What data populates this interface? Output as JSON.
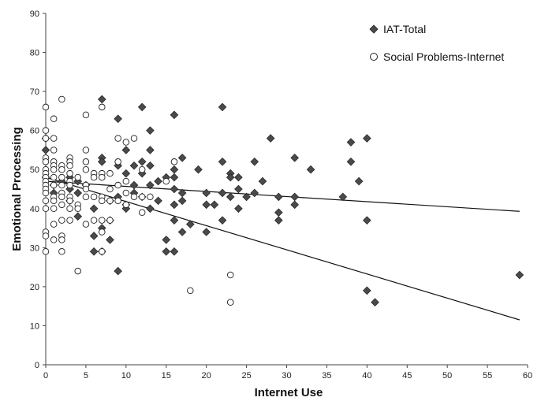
{
  "chart_data": {
    "type": "scatter",
    "title": "",
    "xlabel": "Internet Use",
    "ylabel": "Emotional Processing",
    "xlim": [
      0,
      60
    ],
    "ylim": [
      0,
      90
    ],
    "xticks": [
      "0",
      "5",
      "10",
      "15",
      "20",
      "25",
      "30",
      "35",
      "40",
      "45",
      "50",
      "55",
      "60"
    ],
    "yticks": [
      "0",
      "10",
      "20",
      "30",
      "40",
      "50",
      "60",
      "70",
      "80",
      "90"
    ],
    "grid": false,
    "legend_position": "top-right",
    "series": [
      {
        "name": "IAT-Total",
        "marker": "diamond",
        "color": "#4a4a4a",
        "points": [
          [
            0,
            58
          ],
          [
            0,
            55
          ],
          [
            0,
            48
          ],
          [
            1,
            44
          ],
          [
            1,
            46
          ],
          [
            2,
            47
          ],
          [
            3,
            48
          ],
          [
            3,
            45
          ],
          [
            3,
            42
          ],
          [
            4,
            47
          ],
          [
            4,
            44
          ],
          [
            4,
            38
          ],
          [
            5,
            46
          ],
          [
            6,
            33
          ],
          [
            6,
            29
          ],
          [
            6,
            40
          ],
          [
            7,
            68
          ],
          [
            7,
            53
          ],
          [
            7,
            52
          ],
          [
            7,
            35
          ],
          [
            7,
            29
          ],
          [
            8,
            37
          ],
          [
            8,
            32
          ],
          [
            8,
            42
          ],
          [
            9,
            63
          ],
          [
            9,
            24
          ],
          [
            9,
            43
          ],
          [
            9,
            51
          ],
          [
            10,
            55
          ],
          [
            10,
            49
          ],
          [
            10,
            41
          ],
          [
            10,
            40
          ],
          [
            11,
            51
          ],
          [
            11,
            46
          ],
          [
            11,
            44
          ],
          [
            12,
            66
          ],
          [
            12,
            52
          ],
          [
            12,
            49
          ],
          [
            12,
            43
          ],
          [
            13,
            60
          ],
          [
            13,
            55
          ],
          [
            13,
            51
          ],
          [
            13,
            46
          ],
          [
            13,
            40
          ],
          [
            14,
            47
          ],
          [
            14,
            42
          ],
          [
            15,
            48
          ],
          [
            15,
            32
          ],
          [
            15,
            29
          ],
          [
            16,
            64
          ],
          [
            16,
            50
          ],
          [
            16,
            48
          ],
          [
            16,
            45
          ],
          [
            16,
            41
          ],
          [
            16,
            37
          ],
          [
            16,
            29
          ],
          [
            17,
            53
          ],
          [
            17,
            44
          ],
          [
            17,
            42
          ],
          [
            17,
            34
          ],
          [
            18,
            36
          ],
          [
            19,
            50
          ],
          [
            20,
            44
          ],
          [
            20,
            41
          ],
          [
            20,
            34
          ],
          [
            21,
            41
          ],
          [
            22,
            66
          ],
          [
            22,
            52
          ],
          [
            22,
            44
          ],
          [
            22,
            37
          ],
          [
            23,
            49
          ],
          [
            23,
            48
          ],
          [
            23,
            43
          ],
          [
            24,
            48
          ],
          [
            24,
            45
          ],
          [
            24,
            40
          ],
          [
            25,
            43
          ],
          [
            26,
            52
          ],
          [
            26,
            44
          ],
          [
            27,
            47
          ],
          [
            28,
            58
          ],
          [
            29,
            43
          ],
          [
            29,
            39
          ],
          [
            29,
            37
          ],
          [
            31,
            53
          ],
          [
            31,
            43
          ],
          [
            31,
            41
          ],
          [
            33,
            50
          ],
          [
            37,
            43
          ],
          [
            38,
            57
          ],
          [
            38,
            52
          ],
          [
            39,
            47
          ],
          [
            40,
            58
          ],
          [
            40,
            37
          ],
          [
            40,
            19
          ],
          [
            41,
            16
          ],
          [
            59,
            23
          ]
        ],
        "trendline": {
          "x": [
            0,
            59
          ],
          "y": [
            47,
            39.3
          ]
        }
      },
      {
        "name": "Social Problems-Internet",
        "marker": "circle",
        "color": "#ffffff",
        "points": [
          [
            0,
            66
          ],
          [
            0,
            60
          ],
          [
            0,
            58
          ],
          [
            0,
            53
          ],
          [
            0,
            52
          ],
          [
            0,
            50
          ],
          [
            0,
            49
          ],
          [
            0,
            48
          ],
          [
            0,
            47
          ],
          [
            0,
            46
          ],
          [
            0,
            45
          ],
          [
            0,
            44
          ],
          [
            0,
            42
          ],
          [
            0,
            40
          ],
          [
            0,
            34
          ],
          [
            0,
            33
          ],
          [
            0,
            29
          ],
          [
            1,
            63
          ],
          [
            1,
            58
          ],
          [
            1,
            55
          ],
          [
            1,
            52
          ],
          [
            1,
            51
          ],
          [
            1,
            50
          ],
          [
            1,
            48
          ],
          [
            1,
            46
          ],
          [
            1,
            43
          ],
          [
            1,
            42
          ],
          [
            1,
            40
          ],
          [
            1,
            36
          ],
          [
            1,
            32
          ],
          [
            2,
            68
          ],
          [
            2,
            51
          ],
          [
            2,
            50
          ],
          [
            2,
            48
          ],
          [
            2,
            46
          ],
          [
            2,
            44
          ],
          [
            2,
            43
          ],
          [
            2,
            41
          ],
          [
            2,
            37
          ],
          [
            2,
            33
          ],
          [
            2,
            32
          ],
          [
            2,
            29
          ],
          [
            3,
            53
          ],
          [
            3,
            52
          ],
          [
            3,
            51
          ],
          [
            3,
            49
          ],
          [
            3,
            47
          ],
          [
            3,
            46
          ],
          [
            3,
            43
          ],
          [
            3,
            42
          ],
          [
            3,
            40
          ],
          [
            3,
            37
          ],
          [
            4,
            48
          ],
          [
            4,
            41
          ],
          [
            4,
            40
          ],
          [
            4,
            24
          ],
          [
            5,
            64
          ],
          [
            5,
            55
          ],
          [
            5,
            52
          ],
          [
            5,
            50
          ],
          [
            5,
            46
          ],
          [
            5,
            45
          ],
          [
            5,
            43
          ],
          [
            5,
            36
          ],
          [
            6,
            49
          ],
          [
            6,
            48
          ],
          [
            6,
            43
          ],
          [
            6,
            37
          ],
          [
            7,
            66
          ],
          [
            7,
            49
          ],
          [
            7,
            48
          ],
          [
            7,
            43
          ],
          [
            7,
            42
          ],
          [
            7,
            37
          ],
          [
            7,
            34
          ],
          [
            7,
            29
          ],
          [
            8,
            49
          ],
          [
            8,
            45
          ],
          [
            8,
            42
          ],
          [
            8,
            37
          ],
          [
            9,
            58
          ],
          [
            9,
            52
          ],
          [
            9,
            46
          ],
          [
            9,
            42
          ],
          [
            10,
            57
          ],
          [
            10,
            47
          ],
          [
            10,
            44
          ],
          [
            10,
            41
          ],
          [
            11,
            58
          ],
          [
            11,
            43
          ],
          [
            12,
            50
          ],
          [
            12,
            43
          ],
          [
            12,
            39
          ],
          [
            13,
            43
          ],
          [
            15,
            47
          ],
          [
            16,
            52
          ],
          [
            18,
            19
          ],
          [
            23,
            23
          ],
          [
            23,
            16
          ]
        ],
        "trendline": {
          "x": [
            0,
            59
          ],
          "y": [
            48,
            11.5
          ]
        }
      }
    ]
  }
}
